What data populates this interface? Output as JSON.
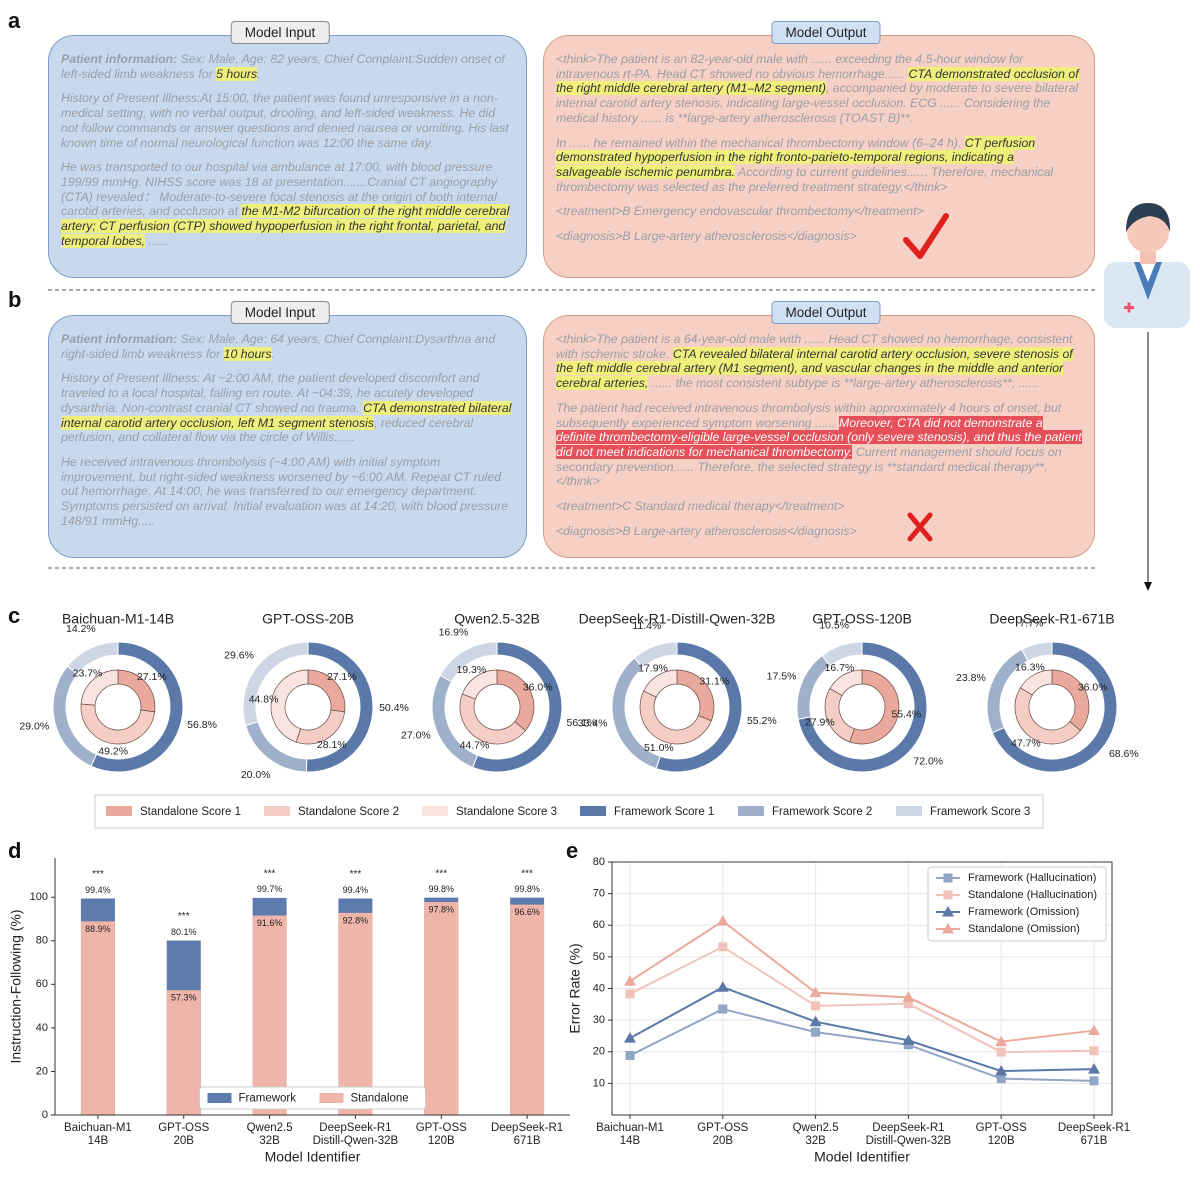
{
  "panel_labels": [
    "a",
    "b",
    "c",
    "d",
    "e"
  ],
  "cases": [
    {
      "input_tag": "Model Input",
      "output_tag": "Model Output",
      "input": [
        [
          {
            "text": "Patient information:",
            "bold": true
          },
          {
            "text": " Sex: Male,   Age: 82 years, Chief Complaint:Sudden onset of left-sided limb weakness for "
          },
          {
            "text": "5 hours",
            "highlight": "#eff07c"
          },
          {
            "text": "."
          }
        ],
        [
          {
            "text": "History of Present Illness:At 15:00, the patient was found unresponsive in a non-medical setting, with no verbal output, drooling, and left-sided weakness. He did not follow commands or answer questions and denied nausea or vomiting. His last known time of normal neurological function was 12:00 the same day."
          }
        ],
        [
          {
            "text": "He was transported to our hospital via ambulance at 17:00, with blood pressure 199/99 mmHg. NIHSS score was 18 at presentation.......Cranial CT angiography (CTA) revealed： Moderate-to-severe focal stenosis at the origin of both internal carotid arteries, and occlusion at "
          },
          {
            "text": "the M1-M2 bifurcation of the right middle cerebral artery; CT perfusion (CTP) showed hypoperfusion in the right frontal, parietal, and temporal lobes,",
            "highlight": "#eff07c"
          },
          {
            "text": " ......"
          }
        ]
      ],
      "output": [
        [
          {
            "text": "<think>The patient is an 82-year-old male with ...... exceeding the 4.5-hour window for intravenous rt-PA. Head CT showed no obvious hemorrhage...... "
          },
          {
            "text": "CTA demonstrated occlusion of the right middle cerebral artery (M1–M2 segment)",
            "highlight": "#eff07c"
          },
          {
            "text": ", accompanied by moderate to severe bilateral internal carotid artery stenosis, indicating large-vessel occlusion. ECG ......  Considering the medical history ...... is **large-artery atherosclerosis (TOAST B)**."
          }
        ],
        [
          {
            "text": "In ...... he remained within the mechanical thrombectomy window (6–24 h). "
          },
          {
            "text": "CT perfusion demonstrated hypoperfusion in the right fronto-parieto-temporal regions, indicating a salvageable ischemic penumbra.",
            "highlight": "#eff07c"
          },
          {
            "text": " According to current guidelines...... Therefore, mechanical thrombectomy was selected as the preferred treatment strategy.</think>"
          }
        ],
        [
          {
            "text": "<treatment>B Emergency endovascular thrombectomy</treatment>"
          }
        ],
        [
          {
            "text": "<diagnosis>B Large-artery atherosclerosis</diagnosis>"
          }
        ]
      ]
    },
    {
      "input_tag": "Model Input",
      "output_tag": "Model Output",
      "input": [
        [
          {
            "text": "Patient information:",
            "bold": true
          },
          {
            "text": " Sex: Male,   Age: 64 years, Chief Complaint:Dysarthria and right-sided limb weakness for "
          },
          {
            "text": "10 hours",
            "highlight": "#eff07c"
          },
          {
            "text": "."
          }
        ],
        [
          {
            "text": "History of Present Illness: At ~2:00 AM, the patient developed discomfort and traveled to a local hospital, falling en route. At ~04:39, he acutely developed dysarthria. Non-contrast cranial CT showed no trauma. "
          },
          {
            "text": "CTA demonstrated bilateral internal carotid artery occlusion, left M1 segment stenosis",
            "highlight": "#eff07c"
          },
          {
            "text": ", reduced cerebral perfusion, and collateral flow via the circle of Willis......"
          }
        ],
        [
          {
            "text": "He received intravenous thrombolysis (~4:00 AM) with initial symptom improvement, but right-sided weakness worsened by ~6:00 AM. Repeat CT ruled out hemorrhage. At 14:00, he was transferred to our emergency department. Symptoms persisted on arrival. Initial evaluation was at 14:20, with blood pressure 148/91 mmHg....."
          }
        ]
      ],
      "output": [
        [
          {
            "text": "<think>The patient is a 64-year-old male with ...... Head CT showed no hemorrhage, consistent with ischemic stroke. "
          },
          {
            "text": "CTA revealed bilateral internal carotid artery occlusion, severe stenosis of the left middle cerebral artery (M1 segment), and vascular changes in the middle and anterior cerebral arteries,",
            "highlight": "#eff07c"
          },
          {
            "text": " ...... the most consistent subtype is **large-artery atherosclerosis**, ......"
          }
        ],
        [
          {
            "text": "The patient had received intravenous thrombolysis within approximately 4 hours of onset, but subsequently experienced symptom worsening ...... "
          },
          {
            "text": "Moreover, CTA did not demonstrate a definite thrombectomy-eligible large-vessel occlusion (only severe stenosis), and thus the patient did not meet indications for mechanical thrombectomy.",
            "highlight": "#e5505a"
          },
          {
            "text": " Current management should focus on secondary prevention...... Therefore, the selected strategy is **standard medical therapy**.</think>"
          }
        ],
        [
          {
            "text": "<treatment>C Standard medical therapy</treatment>"
          }
        ],
        [
          {
            "text": "<diagnosis>B Large-artery atherosclerosis</diagnosis>"
          }
        ]
      ]
    }
  ],
  "chart_data": [
    {
      "type": "donut",
      "legend": "bottom",
      "titles": [
        "Baichuan-M1-14B",
        "GPT-OSS-20B",
        "Qwen2.5-32B",
        "DeepSeek-R1-Distill-Qwen-32B",
        "GPT-OSS-120B",
        "DeepSeek-R1-671B"
      ],
      "series": [
        {
          "name": "Standalone Score 1",
          "color": "#eaa99d",
          "ring": "inner",
          "values": [
            27.1,
            27.1,
            36.0,
            31.1,
            55.4,
            36.0
          ],
          "value_labels": [
            "27.1%",
            "27.1%",
            "36.0%",
            "31.1%",
            "55.4%",
            "36.0%"
          ]
        },
        {
          "name": "Standalone Score 2",
          "color": "#f4cdc4",
          "ring": "inner",
          "values": [
            49.2,
            28.1,
            44.7,
            51.0,
            27.9,
            47.7
          ],
          "value_labels": [
            "49.2%",
            "28.1%",
            "44.7%",
            "51.0%",
            "27.9%",
            "47.7%"
          ]
        },
        {
          "name": "Standalone Score 3",
          "color": "#f9e4df",
          "ring": "inner",
          "values": [
            23.7,
            44.8,
            19.3,
            17.9,
            16.7,
            16.3
          ],
          "value_labels": [
            "23.7%",
            "44.8%",
            "19.3%",
            "17.9%",
            "16.7%",
            "16.3%"
          ]
        },
        {
          "name": "Framework Score 1",
          "color": "#5a78a8",
          "ring": "outer",
          "values": [
            56.8,
            50.4,
            56.1,
            55.2,
            72.0,
            68.6
          ],
          "value_labels": [
            "56.8%",
            "50.4%",
            "56.1%",
            "55.2%",
            "72.0%",
            "68.6%"
          ]
        },
        {
          "name": "Framework Score 2",
          "color": "#9fb0cb",
          "ring": "outer",
          "values": [
            29.0,
            20.0,
            27.0,
            33.4,
            17.5,
            23.8
          ],
          "value_labels": [
            "29.0%",
            "20.0%",
            "27.0%",
            "33.4%",
            "17.5%",
            "23.8%"
          ]
        },
        {
          "name": "Framework Score 3",
          "color": "#cdd6e4",
          "ring": "outer",
          "values": [
            14.2,
            29.6,
            16.9,
            11.4,
            10.5,
            7.7
          ],
          "value_labels": [
            "14.2%",
            "29.6%",
            "16.9%",
            "11.4%",
            "10.5%",
            "7.7%"
          ]
        }
      ]
    },
    {
      "type": "bar",
      "overlap": true,
      "legend": "lower center",
      "categories": [
        [
          "Baichuan-M1",
          "14B"
        ],
        [
          "GPT-OSS",
          "20B"
        ],
        [
          "Qwen2.5",
          "32B"
        ],
        [
          "DeepSeek-R1",
          "Distill-Qwen-32B"
        ],
        [
          "GPT-OSS",
          "120B"
        ],
        [
          "DeepSeek-R1",
          "671B"
        ]
      ],
      "series": [
        {
          "name": "Framework",
          "color": "#5d7cad",
          "values": [
            99.4,
            80.1,
            99.7,
            99.4,
            99.8,
            99.8
          ],
          "value_labels": [
            "99.4%",
            "80.1%",
            "99.7%",
            "99.4%",
            "99.8%",
            "99.8%"
          ]
        },
        {
          "name": "Standalone",
          "color": "#f0b5a9",
          "values": [
            88.9,
            57.3,
            91.6,
            92.8,
            97.8,
            96.6
          ],
          "value_labels": [
            "88.9%",
            "57.3%",
            "91.6%",
            "92.8%",
            "97.8%",
            "96.6%"
          ]
        }
      ],
      "annotations": [
        "***",
        "***",
        "***",
        "***",
        "***",
        "***"
      ],
      "xlabel": "Model Identifier",
      "ylabel": "Instruction-Following (%)",
      "ylim": [
        0,
        118
      ],
      "yticks": [
        0,
        20,
        40,
        60,
        80,
        100
      ]
    },
    {
      "type": "line",
      "legend": "upper right",
      "grid": true,
      "categories": [
        [
          "Baichuan-M1",
          "14B"
        ],
        [
          "GPT-OSS",
          "20B"
        ],
        [
          "Qwen2.5",
          "32B"
        ],
        [
          "DeepSeek-R1",
          "Distill-Qwen-32B"
        ],
        [
          "GPT-OSS",
          "120B"
        ],
        [
          "DeepSeek-R1",
          "671B"
        ]
      ],
      "series": [
        {
          "name": "Framework (Hallucination)",
          "color": "#91a5c5",
          "marker": "square",
          "values": [
            18.8,
            33.5,
            26.2,
            22.2,
            11.5,
            10.8
          ]
        },
        {
          "name": "Standalone (Hallucination)",
          "color": "#f1c3b8",
          "marker": "square",
          "values": [
            38.3,
            53.2,
            34.5,
            35.2,
            19.9,
            20.3
          ]
        },
        {
          "name": "Framework (Omission)",
          "color": "#5a77a6",
          "marker": "triangle",
          "values": [
            24.3,
            40.4,
            29.5,
            23.6,
            13.9,
            14.5
          ]
        },
        {
          "name": "Standalone (Omission)",
          "color": "#eba99c",
          "marker": "triangle",
          "values": [
            42.3,
            61.3,
            38.7,
            37.2,
            23.2,
            26.7
          ]
        }
      ],
      "xlabel": "Model Identifier",
      "ylabel": "Error Rate (%)",
      "ylim": [
        0,
        80
      ],
      "yticks": [
        10,
        20,
        30,
        40,
        50,
        60,
        70,
        80
      ]
    }
  ]
}
